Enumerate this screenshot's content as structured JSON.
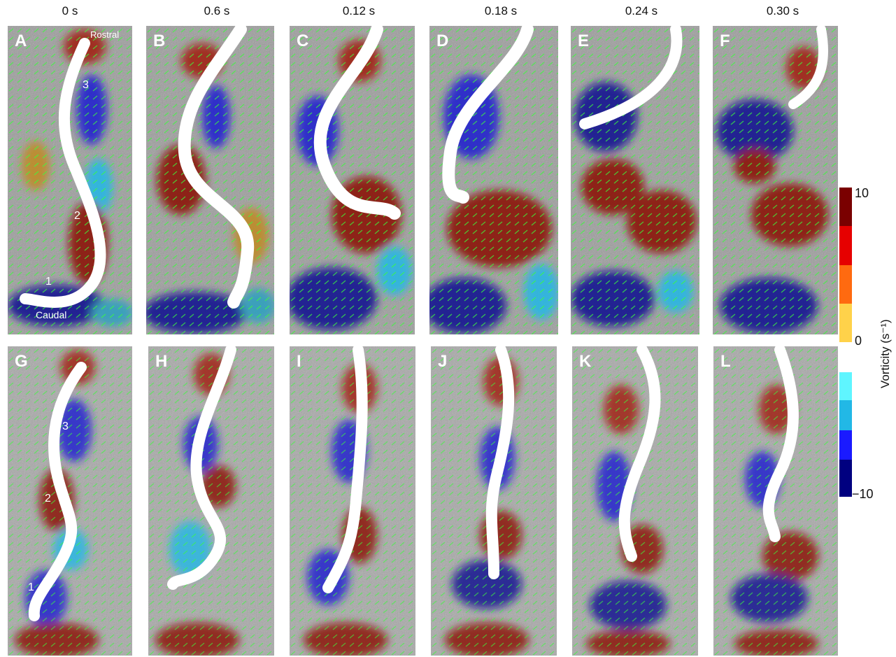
{
  "time_labels": [
    "0 s",
    "0.6 s",
    "0.12 s",
    "0.18 s",
    "0.24 s",
    "0.30 s"
  ],
  "panel_letters": [
    "A",
    "B",
    "C",
    "D",
    "E",
    "F",
    "G",
    "H",
    "I",
    "J",
    "K",
    "L"
  ],
  "annotations": {
    "rostral": "Rostral",
    "caudal": "Caudal",
    "num1": "1",
    "num2": "2",
    "num3": "3"
  },
  "colorbar": {
    "title": "Vorticity (s⁻¹)",
    "tick_max": "10",
    "tick_zero": "0",
    "tick_min": "−10",
    "positive_colors": [
      "#7a0000",
      "#e60000",
      "#ff6a10",
      "#ffd24a"
    ],
    "negative_colors": [
      "#5ff5ff",
      "#22b8e6",
      "#1a1aff",
      "#000080"
    ]
  }
}
